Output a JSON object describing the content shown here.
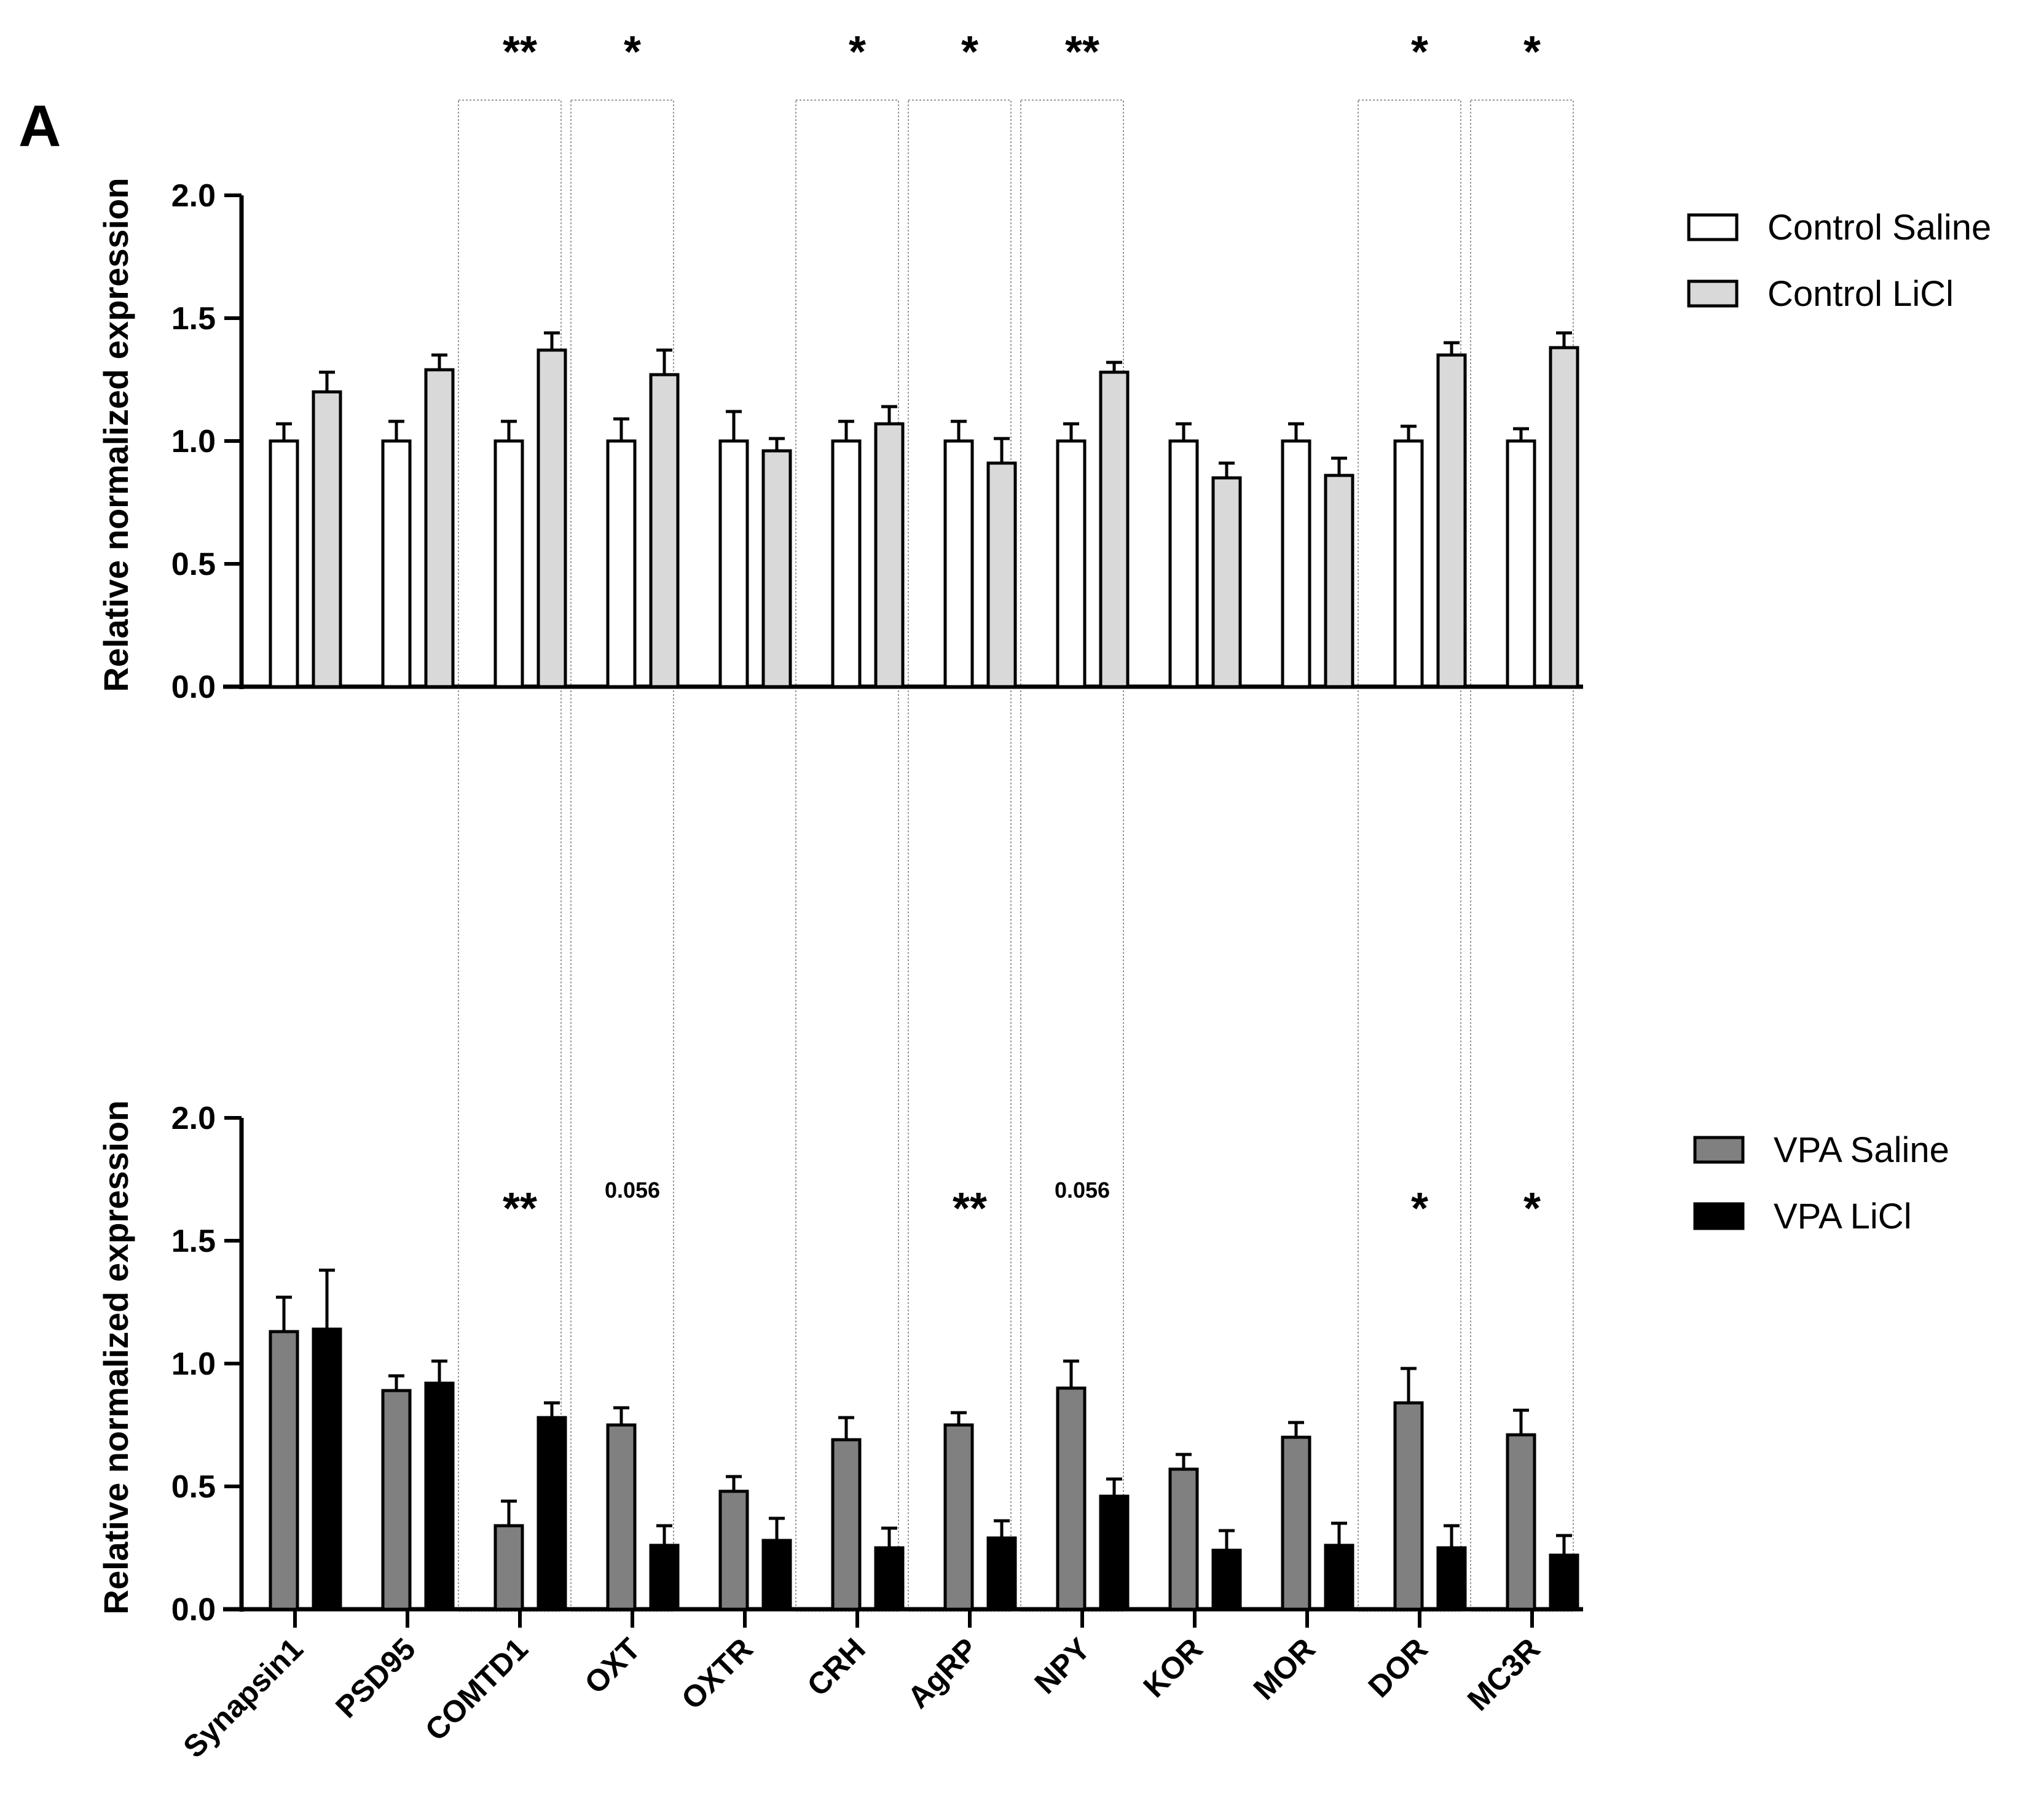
{
  "panel_label": "A",
  "colors": {
    "control_saline": "#ffffff",
    "control_licl": "#d9d9d9",
    "vpa_saline": "#808080",
    "vpa_licl": "#000000",
    "frame": "#000000",
    "highlight_box": "#9a9a9a"
  },
  "chart_data": [
    {
      "type": "bar",
      "ylabel": "Relative normalized expression",
      "ylim": [
        0,
        2.0
      ],
      "yticks": [
        "0.0",
        "0.5",
        "1.0",
        "1.5",
        "2.0"
      ],
      "categories": [
        "Synapsin1",
        "PSD95",
        "COMTD1",
        "OXT",
        "OXTR",
        "CRH",
        "AgRP",
        "NPY",
        "KOR",
        "MOR",
        "DOR",
        "MC3R"
      ],
      "legend_position": "top-right",
      "series": [
        {
          "name": "Control Saline",
          "values": [
            1.0,
            1.0,
            1.0,
            1.0,
            1.0,
            1.0,
            1.0,
            1.0,
            1.0,
            1.0,
            1.0,
            1.0
          ],
          "errors": [
            0.07,
            0.08,
            0.08,
            0.09,
            0.12,
            0.08,
            0.08,
            0.07,
            0.07,
            0.07,
            0.06,
            0.05
          ]
        },
        {
          "name": "Control LiCl",
          "values": [
            1.2,
            1.29,
            1.37,
            1.27,
            0.96,
            1.07,
            0.91,
            1.28,
            0.85,
            0.86,
            1.35,
            1.38
          ],
          "errors": [
            0.08,
            0.06,
            0.07,
            0.1,
            0.05,
            0.07,
            0.1,
            0.04,
            0.06,
            0.07,
            0.05,
            0.06
          ]
        }
      ],
      "annotations": [
        "",
        "",
        "**",
        "*",
        "",
        "*",
        "*",
        "**",
        "",
        "",
        "*",
        "*"
      ]
    },
    {
      "type": "bar",
      "ylabel": "Relative normalized expression",
      "ylim": [
        0,
        2.0
      ],
      "yticks": [
        "0.0",
        "0.5",
        "1.0",
        "1.5",
        "2.0"
      ],
      "categories": [
        "Synapsin1",
        "PSD95",
        "COMTD1",
        "OXT",
        "OXTR",
        "CRH",
        "AgRP",
        "NPY",
        "KOR",
        "MOR",
        "DOR",
        "MC3R"
      ],
      "legend_position": "top-right",
      "series": [
        {
          "name": "VPA Saline",
          "values": [
            1.13,
            0.89,
            0.34,
            0.75,
            0.48,
            0.69,
            0.75,
            0.9,
            0.57,
            0.7,
            0.84,
            0.71
          ],
          "errors": [
            0.14,
            0.06,
            0.1,
            0.07,
            0.06,
            0.09,
            0.05,
            0.11,
            0.06,
            0.06,
            0.14,
            0.1
          ]
        },
        {
          "name": "VPA LiCl",
          "values": [
            1.14,
            0.92,
            0.78,
            0.26,
            0.28,
            0.25,
            0.29,
            0.46,
            0.24,
            0.26,
            0.25,
            0.22
          ],
          "errors": [
            0.24,
            0.09,
            0.06,
            0.08,
            0.09,
            0.08,
            0.07,
            0.07,
            0.08,
            0.09,
            0.09,
            0.08
          ]
        }
      ],
      "annotations": [
        "",
        "",
        "**",
        "0.056",
        "",
        "",
        "**",
        "0.056",
        "",
        "",
        "*",
        "*"
      ]
    }
  ]
}
